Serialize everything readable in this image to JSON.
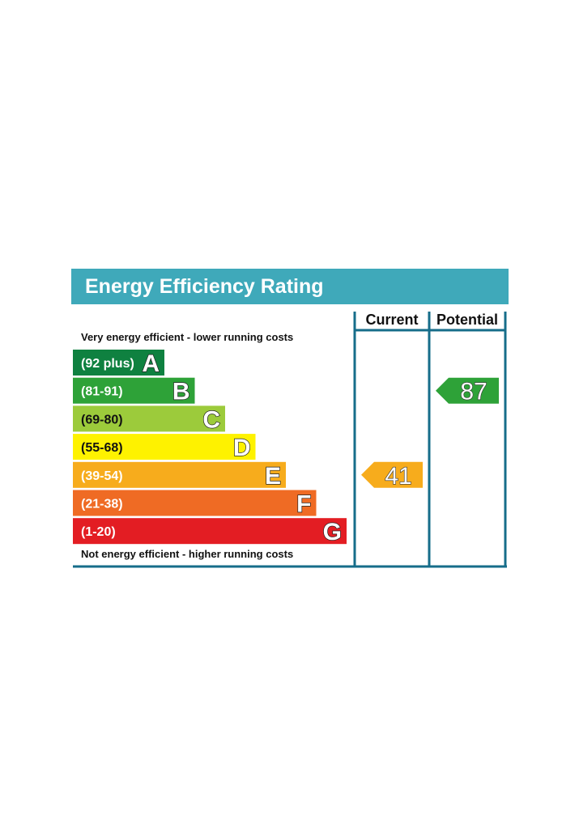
{
  "chart_data": {
    "type": "bar",
    "title": "Energy Efficiency Rating",
    "top_caption": "Very energy efficient - lower running costs",
    "bottom_caption": "Not energy efficient - higher running costs",
    "columns": {
      "current": "Current",
      "potential": "Potential"
    },
    "bands": [
      {
        "range": "(92 plus)",
        "letter": "A",
        "color": "#0f8140"
      },
      {
        "range": "(81-91)",
        "letter": "B",
        "color": "#2ea238"
      },
      {
        "range": "(69-80)",
        "letter": "C",
        "color": "#9ccb3b"
      },
      {
        "range": "(55-68)",
        "letter": "D",
        "color": "#fef200"
      },
      {
        "range": "(39-54)",
        "letter": "E",
        "color": "#f7ac1c"
      },
      {
        "range": "(21-38)",
        "letter": "F",
        "color": "#ef6b24"
      },
      {
        "range": "(1-20)",
        "letter": "G",
        "color": "#e31d23"
      }
    ],
    "current": {
      "value": 41,
      "band": "E",
      "color": "#f7ac1c"
    },
    "potential": {
      "value": 87,
      "band": "B",
      "color": "#2ea238"
    },
    "colors": {
      "header": "#3fa9ba",
      "frame": "#166d8a"
    }
  }
}
